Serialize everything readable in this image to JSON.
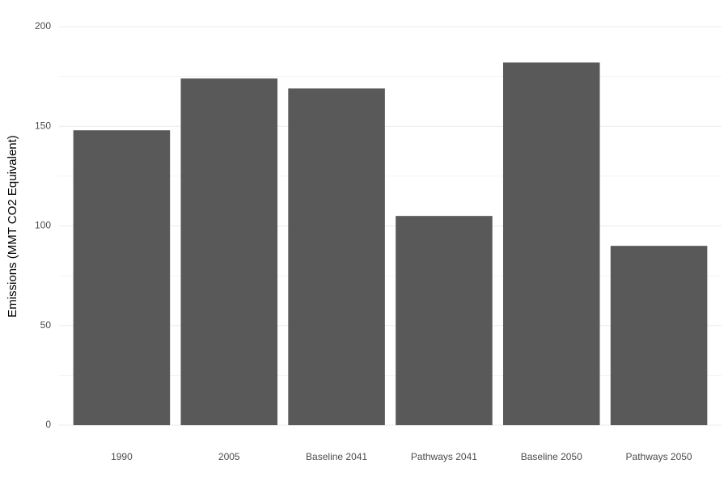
{
  "chart_data": {
    "type": "bar",
    "y_label": "Emissions (MMT CO2 Equivalent)",
    "categories": [
      "1990",
      "2005",
      "Baseline 2041",
      "Pathways 2041",
      "Baseline 2050",
      "Pathways 2050"
    ],
    "values": [
      148,
      174,
      169,
      105,
      182,
      90
    ],
    "color": "#595959",
    "ylim": [
      0,
      200
    ],
    "yticks": [
      0,
      50,
      100,
      150,
      200
    ],
    "grid": true,
    "minor_grid": true
  }
}
